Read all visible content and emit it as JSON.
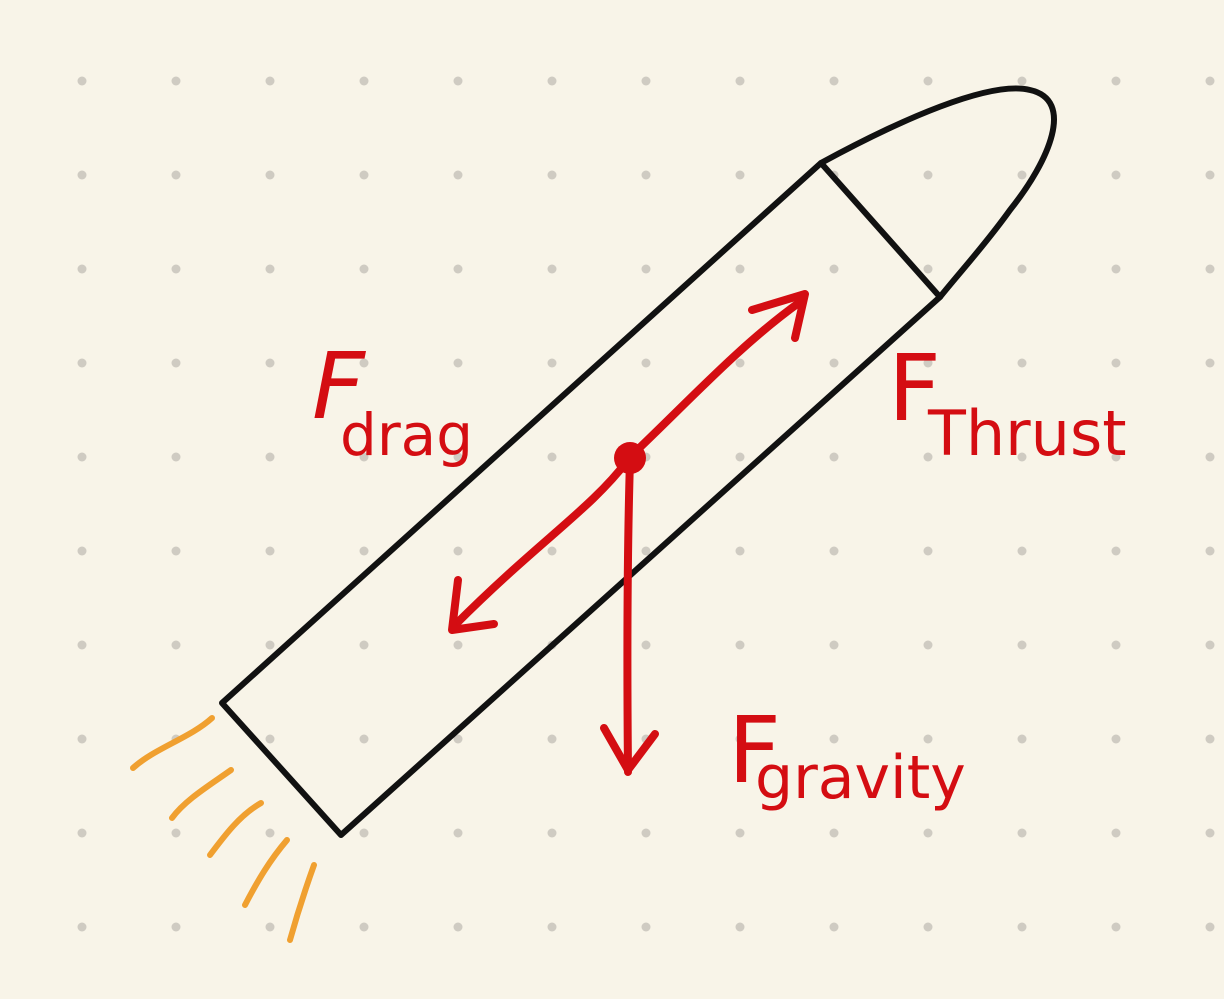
{
  "colors": {
    "background": "#f8f4e8",
    "grid_dot": "#cfcbc2",
    "rocket_outline": "#111111",
    "force": "#d40d12",
    "exhaust": "#f0a030"
  },
  "labels": {
    "drag_main": "F",
    "drag_sub": "drag",
    "thrust_main": "F",
    "thrust_sub": "Thrust",
    "gravity_main": "F",
    "gravity_sub": "gravity"
  }
}
